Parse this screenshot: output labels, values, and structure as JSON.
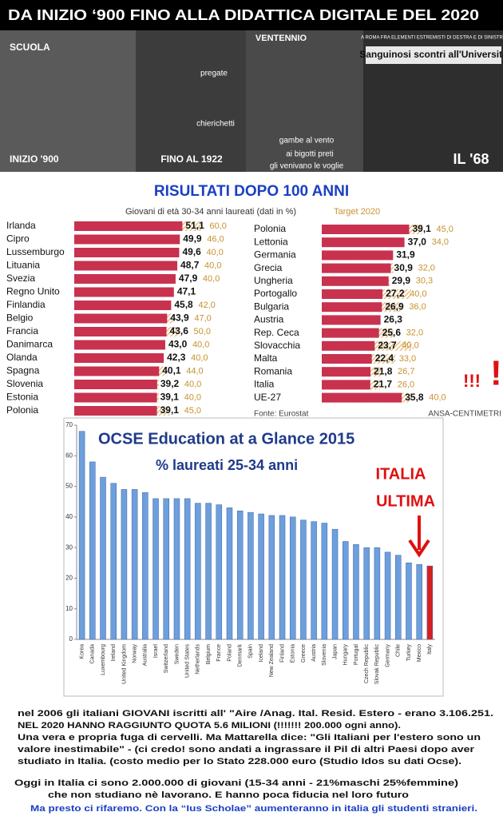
{
  "header": {
    "title": "DA INIZIO ‘900 FINO ALLA DIDATTICA DIGITALE  DEL 2020"
  },
  "photos": {
    "captions": [
      "SCUOLA",
      "INIZIO '900",
      "pregate",
      "chierichetti",
      "FINO AL 1922",
      "VENTENNIO",
      "gambe al vento",
      "ai bigotti  preti",
      "gli venivano le voglie",
      "A ROMA FRA ELEMENTI ESTREMISTI DI DESTRA E DI SINISTRA",
      "Sanguinosi scontri all'Università",
      "IL '68"
    ]
  },
  "results_title": "RISULTATI DOPO 100 ANNI",
  "eu_subtitle": "Giovani di età 30-34 anni laureati (dati in %)",
  "eu_target_legend": "Target 2020",
  "exclamations": [
    "!!!",
    "!"
  ],
  "chart_data": [
    {
      "type": "hbar",
      "color": "#c8324f",
      "target_color": "#e2b46a",
      "categories": [
        "Irlanda",
        "Cipro",
        "Lussemburgo",
        "Lituania",
        "Svezia",
        "Regno Unito",
        "Finlandia",
        "Belgio",
        "Francia",
        "Danimarca",
        "Olanda",
        "Spagna",
        "Slovenia",
        "Estonia",
        "Polonia"
      ],
      "values": [
        51.1,
        49.9,
        49.6,
        48.7,
        47.9,
        47.1,
        45.8,
        43.9,
        43.6,
        43.0,
        42.3,
        40.1,
        39.2,
        39.1,
        39.1
      ],
      "value_labels": [
        "51,1",
        "49,9",
        "49,6",
        "48,7",
        "47,9",
        "47,1",
        "45,8",
        "43,9",
        "43,6",
        "43,0",
        "42,3",
        "40,1",
        "39,2",
        "39,1",
        "39,1"
      ],
      "targets": [
        60,
        46,
        40,
        40,
        40,
        null,
        42,
        47,
        50,
        40,
        40,
        44,
        40,
        40,
        45
      ],
      "target_labels": [
        "60,0",
        "46,0",
        "40,0",
        "40,0",
        "40,0",
        null,
        "42,0",
        "47,0",
        "50,0",
        "40,0",
        "40,0",
        "44,0",
        "40,0",
        "40,0",
        "45,0"
      ]
    },
    {
      "type": "hbar",
      "color": "#c8324f",
      "target_color": "#e2b46a",
      "categories": [
        "Polonia",
        "Lettonia",
        "Germania",
        "Grecia",
        "Ungheria",
        "Portogallo",
        "Bulgaria",
        "Austria",
        "Rep. Ceca",
        "Slovacchia",
        "Malta",
        "Romania",
        "Italia",
        "UE-27"
      ],
      "values": [
        39.1,
        37.0,
        31.9,
        30.9,
        29.9,
        27.2,
        26.9,
        26.3,
        25.6,
        23.7,
        22.4,
        21.8,
        21.7,
        35.8
      ],
      "value_labels": [
        "39,1",
        "37,0",
        "31,9",
        "30,9",
        "29,9",
        "27,2",
        "26,9",
        "26,3",
        "25,6",
        "23,7",
        "22,4",
        "21,8",
        "21,7",
        "35,8"
      ],
      "targets": [
        45,
        34,
        null,
        32,
        30.3,
        40,
        36,
        null,
        32,
        40,
        33,
        26.7,
        26,
        40
      ],
      "target_labels": [
        "45,0",
        "34,0",
        null,
        "32,0",
        "30,3",
        "40,0",
        "36,0",
        null,
        "32,0",
        "40,0",
        "33,0",
        "26,7",
        "26,0",
        "40,0"
      ],
      "source": "Fonte: Eurostat",
      "credit": "ANSA-CENTIMETRI"
    },
    {
      "type": "bar",
      "title": "OCSE Education at a Glance 2015",
      "subtitle": "% laureati 25-34 anni",
      "annotations": [
        "ITALIA",
        "ULTIMA"
      ],
      "categories": [
        "Korea",
        "Canada",
        "Luxembourg",
        "Ireland",
        "United Kingdom",
        "Norway",
        "Australia",
        "Israel",
        "Switzerland",
        "Sweden",
        "United States",
        "Netherlands",
        "Belgium",
        "France",
        "Poland",
        "Denmark",
        "Spain",
        "Iceland",
        "New Zealand",
        "Finland",
        "Estonia",
        "Greece",
        "Austria",
        "Slovenia",
        "Japan",
        "Hungary",
        "Portugal",
        "Czech Republic",
        "Slovak Republic",
        "Germany",
        "Chile",
        "Turkey",
        "Mexico",
        "Italy"
      ],
      "values": [
        68,
        58,
        53,
        51,
        49,
        49,
        48,
        46,
        46,
        46,
        46,
        44.5,
        44.5,
        44,
        43,
        42,
        41.5,
        41,
        40.5,
        40.5,
        40,
        39,
        38.5,
        38,
        36,
        32,
        31,
        30,
        30,
        28.5,
        27.5,
        25,
        24.5,
        24
      ],
      "colors": [
        "#6d9fdc",
        "#6d9fdc",
        "#6d9fdc",
        "#6d9fdc",
        "#6d9fdc",
        "#6d9fdc",
        "#6d9fdc",
        "#6d9fdc",
        "#6d9fdc",
        "#6d9fdc",
        "#6d9fdc",
        "#6d9fdc",
        "#6d9fdc",
        "#6d9fdc",
        "#6d9fdc",
        "#6d9fdc",
        "#6d9fdc",
        "#6d9fdc",
        "#6d9fdc",
        "#6d9fdc",
        "#6d9fdc",
        "#6d9fdc",
        "#6d9fdc",
        "#6d9fdc",
        "#6d9fdc",
        "#6d9fdc",
        "#6d9fdc",
        "#6d9fdc",
        "#6d9fdc",
        "#6d9fdc",
        "#6d9fdc",
        "#6d9fdc",
        "#6d9fdc",
        "#d42020"
      ],
      "ylim": [
        0,
        70
      ],
      "yticks": [
        0,
        10,
        20,
        30,
        40,
        50,
        60,
        70
      ],
      "grid": false
    }
  ],
  "footer": {
    "lines": [
      {
        "text": "nel  2006 gli italiani GIOVANI  iscritti all' \"Aire /Anag. Ital. Resid. Estero - erano 3.106.251.",
        "color": "#111111"
      },
      {
        "text": "NEL 2020 HANNO  RAGGIUNTO  QUOTA  5.6 MILIONI (!!!!!!! 200.000 ogni anno).",
        "color": "#111111"
      },
      {
        "text": "Una vera e propria fuga di cervelli.  Ma Mattarella dice: \"Gli Italiani per l'estero sono un",
        "color": "#111111"
      },
      {
        "text": "valore inestimabile\" - (ci credo!  sono andati a ingrassare il Pil di altri Paesi dopo aver",
        "color": "#111111"
      },
      {
        "text": "studiato in Italia. (costo medio per lo Stato 228.000  euro (Studio Idos su dati Ocse).",
        "color": "#111111"
      },
      {
        "text": "Oggi in Italia ci sono 2.000.000 di giovani (15-34 anni - 21%maschi 25%femmine)",
        "color": "#111111"
      },
      {
        "text": "che non studiano nè lavorano.     E hanno  poca fiducia nel loro futuro",
        "color": "#111111"
      },
      {
        "text": "Ma presto ci rifaremo. Con la “Ius Scholae” aumenteranno in italia  gli studenti stranieri.",
        "color": "#1a3fc4"
      }
    ]
  }
}
